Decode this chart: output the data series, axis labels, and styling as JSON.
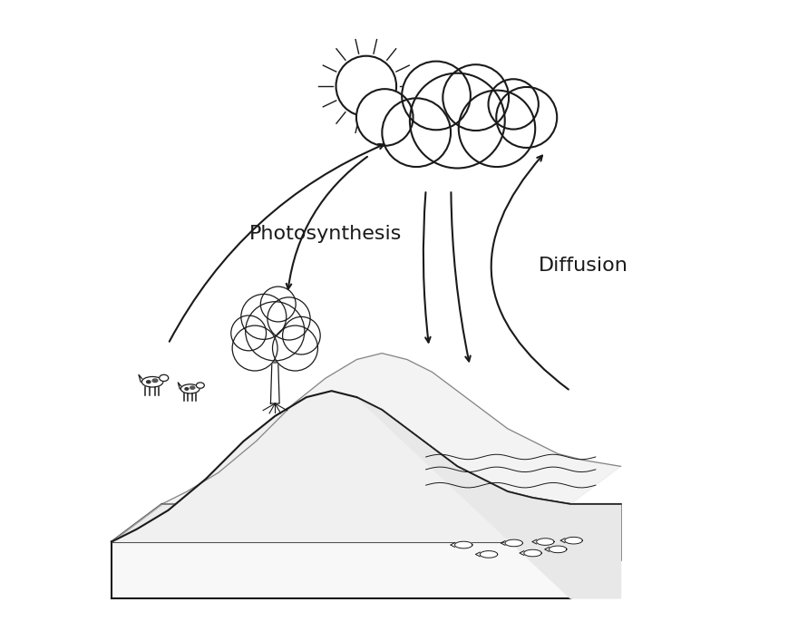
{
  "background_color": "#ffffff",
  "label_photosynthesis": "Photosynthesis",
  "label_diffusion": "Diffusion",
  "photosynthesis_fontsize": 16,
  "diffusion_fontsize": 16,
  "line_color": "#1a1a1a"
}
